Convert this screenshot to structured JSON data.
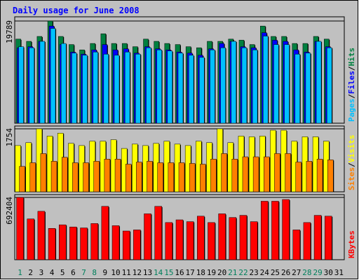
{
  "chart_data": {
    "type": "bar",
    "title": "Daily usage for June 2008",
    "categories": [
      "1",
      "2",
      "3",
      "4",
      "5",
      "6",
      "7",
      "8",
      "9",
      "10",
      "11",
      "12",
      "13",
      "14",
      "15",
      "16",
      "17",
      "18",
      "19",
      "20",
      "21",
      "22",
      "23",
      "24",
      "25",
      "26",
      "27",
      "28",
      "29",
      "30",
      "31"
    ],
    "weekend_days": [
      1,
      7,
      8,
      14,
      15,
      21,
      22,
      28,
      29
    ],
    "colors": {
      "hits": "#008040",
      "files": "#0000ff",
      "pages": "#00c0ff",
      "visits": "#ffff00",
      "sites": "#ff8000",
      "kbytes": "#ff0000",
      "title": "#0000ff",
      "weekend_label": "#00805c",
      "weekday_label": "#000000"
    },
    "panels": [
      {
        "name": "hits-files-pages",
        "ymax_label": "19789",
        "ymax": 19789,
        "legend": [
          "Pages",
          "/",
          "Files",
          "/",
          "Hits"
        ],
        "legend_colors": [
          "#00c0ff",
          "#000000",
          "#0000ff",
          "#000000",
          "#008040"
        ],
        "series": [
          {
            "name": "Hits",
            "color": "#008040",
            "values": [
              16286,
              15855,
              16804,
              19789,
              16804,
              15234,
              14198,
              15441,
              17323,
              15441,
              15441,
              14819,
              16286,
              15855,
              15441,
              15234,
              14819,
              14612,
              15855,
              15855,
              16286,
              16079,
              15234,
              18815,
              16804,
              16804,
              15441,
              15441,
              16804,
              16286,
              0
            ]
          },
          {
            "name": "Files",
            "color": "#0000ff",
            "values": [
              14612,
              14819,
              15855,
              18815,
              15234,
              13784,
              13370,
              14198,
              15234,
              14198,
              14405,
              13577,
              14819,
              14405,
              14198,
              13784,
              13577,
              13163,
              14405,
              15441,
              15855,
              14819,
              14612,
              17530,
              16079,
              15855,
              14198,
              13784,
              15855,
              14819,
              0
            ]
          },
          {
            "name": "Pages",
            "color": "#00c0ff",
            "values": [
              14819,
              14612,
              15855,
              18356,
              15441,
              13577,
              13163,
              13784,
              13370,
              13163,
              13784,
              13370,
              14612,
              14198,
              13991,
              13577,
              13163,
              12749,
              14198,
              14612,
              15855,
              14612,
              14198,
              16872,
              15234,
              15234,
              13370,
              13577,
              15855,
              14612,
              0
            ]
          }
        ]
      },
      {
        "name": "visits-sites",
        "ymax_label": "1754",
        "ymax": 1754,
        "legend": [
          "Sites",
          "/",
          "Visits"
        ],
        "legend_colors": [
          "#ff8000",
          "#000000",
          "#ffff00"
        ],
        "series": [
          {
            "name": "Visits",
            "color": "#ffff00",
            "values": [
              1288,
              1369,
              1754,
              1552,
              1633,
              1349,
              1288,
              1410,
              1410,
              1450,
              1207,
              1328,
              1288,
              1348,
              1410,
              1328,
              1288,
              1410,
              1369,
              1754,
              1369,
              1552,
              1531,
              1552,
              1714,
              1714,
              1410,
              1531,
              1531,
              1410,
              0
            ]
          },
          {
            "name": "Sites",
            "color": "#ff8000",
            "values": [
              709,
              810,
              1065,
              851,
              963,
              810,
              810,
              851,
              911,
              911,
              770,
              829,
              851,
              810,
              810,
              810,
              791,
              770,
              911,
              1065,
              911,
              974,
              974,
              974,
              1065,
              1065,
              829,
              851,
              911,
              891,
              0
            ]
          }
        ]
      },
      {
        "name": "kbytes",
        "ymax_label": "692404",
        "ymax": 692404,
        "legend": [
          "KBytes"
        ],
        "legend_colors": [
          "#ff0000"
        ],
        "series": [
          {
            "name": "KBytes",
            "color": "#ff0000",
            "values": [
              692404,
              453281,
              538093,
              348210,
              387890,
              364015,
              353450,
              402123,
              593028,
              378210,
              318912,
              331210,
              510254,
              593028,
              413241,
              443217,
              423107,
              484019,
              413241,
              510254,
              469210,
              493207,
              423107,
              650018,
              650018,
              669091,
              331210,
              413241,
              493207,
              484019,
              0
            ]
          }
        ]
      }
    ]
  }
}
